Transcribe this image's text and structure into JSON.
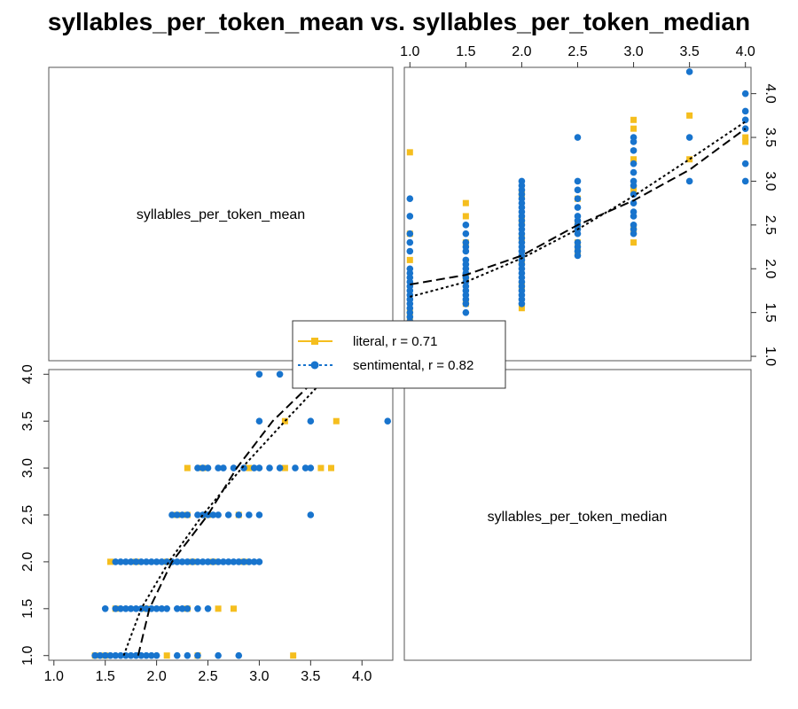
{
  "chart_data": {
    "type": "scatter",
    "title": "syllables_per_token_mean vs. syllables_per_token_median",
    "variables": [
      "syllables_per_token_mean",
      "syllables_per_token_median"
    ],
    "x_ticks": [
      "1.0",
      "1.5",
      "2.0",
      "2.5",
      "3.0",
      "3.5",
      "4.0"
    ],
    "y_ticks": [
      "1.0",
      "1.5",
      "2.0",
      "2.5",
      "3.0",
      "3.5",
      "4.0"
    ],
    "mean_range": [
      0.95,
      4.3
    ],
    "median_range": [
      0.95,
      4.05
    ],
    "grid": false,
    "legend_position": "center",
    "legend": [
      "literal, r = 0.71",
      "sentimental, r = 0.82"
    ],
    "series": [
      {
        "name": "literal, r = 0.71",
        "color": "#F5BE1E",
        "marker": "square",
        "line_style": "dashed",
        "smooth": [
          [
            1.0,
            1.82
          ],
          [
            1.5,
            1.93
          ],
          [
            2.0,
            2.15
          ],
          [
            2.5,
            2.5
          ],
          [
            3.0,
            2.78
          ],
          [
            3.5,
            3.13
          ],
          [
            4.0,
            3.6
          ]
        ],
        "points": [
          [
            1.0,
            3.33
          ],
          [
            1.0,
            2.4
          ],
          [
            1.0,
            2.1
          ],
          [
            1.0,
            1.5
          ],
          [
            1.0,
            1.4
          ],
          [
            1.5,
            2.75
          ],
          [
            1.5,
            2.6
          ],
          [
            1.5,
            2.3
          ],
          [
            1.5,
            1.9
          ],
          [
            1.5,
            1.6
          ],
          [
            2.0,
            2.85
          ],
          [
            2.0,
            2.55
          ],
          [
            2.0,
            2.35
          ],
          [
            2.0,
            2.1
          ],
          [
            2.0,
            1.8
          ],
          [
            2.0,
            1.55
          ],
          [
            2.5,
            2.8
          ],
          [
            2.5,
            2.5
          ],
          [
            2.5,
            2.3
          ],
          [
            2.5,
            2.2
          ],
          [
            3.0,
            3.7
          ],
          [
            3.0,
            3.6
          ],
          [
            3.0,
            3.25
          ],
          [
            3.0,
            2.9
          ],
          [
            3.0,
            2.45
          ],
          [
            3.0,
            2.3
          ],
          [
            3.5,
            3.75
          ],
          [
            3.5,
            3.25
          ],
          [
            4.0,
            3.5
          ],
          [
            4.0,
            3.45
          ]
        ]
      },
      {
        "name": "sentimental, r = 0.82",
        "color": "#1874CD",
        "marker": "circle",
        "line_style": "dotted",
        "smooth": [
          [
            1.0,
            1.68
          ],
          [
            1.5,
            1.85
          ],
          [
            2.0,
            2.12
          ],
          [
            2.5,
            2.45
          ],
          [
            3.0,
            2.83
          ],
          [
            3.5,
            3.25
          ],
          [
            4.0,
            3.68
          ]
        ],
        "points": [
          [
            1.0,
            2.8
          ],
          [
            1.0,
            2.6
          ],
          [
            1.0,
            2.4
          ],
          [
            1.0,
            2.3
          ],
          [
            1.0,
            2.2
          ],
          [
            1.0,
            2.0
          ],
          [
            1.0,
            1.95
          ],
          [
            1.0,
            1.9
          ],
          [
            1.0,
            1.85
          ],
          [
            1.0,
            1.8
          ],
          [
            1.0,
            1.75
          ],
          [
            1.0,
            1.7
          ],
          [
            1.0,
            1.65
          ],
          [
            1.0,
            1.6
          ],
          [
            1.0,
            1.55
          ],
          [
            1.0,
            1.5
          ],
          [
            1.0,
            1.45
          ],
          [
            1.0,
            1.4
          ],
          [
            1.5,
            2.5
          ],
          [
            1.5,
            2.4
          ],
          [
            1.5,
            2.3
          ],
          [
            1.5,
            2.25
          ],
          [
            1.5,
            2.2
          ],
          [
            1.5,
            2.1
          ],
          [
            1.5,
            2.05
          ],
          [
            1.5,
            2.0
          ],
          [
            1.5,
            1.95
          ],
          [
            1.5,
            1.9
          ],
          [
            1.5,
            1.85
          ],
          [
            1.5,
            1.8
          ],
          [
            1.5,
            1.75
          ],
          [
            1.5,
            1.7
          ],
          [
            1.5,
            1.65
          ],
          [
            1.5,
            1.6
          ],
          [
            1.5,
            1.5
          ],
          [
            2.0,
            3.0
          ],
          [
            2.0,
            2.95
          ],
          [
            2.0,
            2.9
          ],
          [
            2.0,
            2.85
          ],
          [
            2.0,
            2.8
          ],
          [
            2.0,
            2.75
          ],
          [
            2.0,
            2.7
          ],
          [
            2.0,
            2.65
          ],
          [
            2.0,
            2.6
          ],
          [
            2.0,
            2.55
          ],
          [
            2.0,
            2.5
          ],
          [
            2.0,
            2.45
          ],
          [
            2.0,
            2.4
          ],
          [
            2.0,
            2.35
          ],
          [
            2.0,
            2.3
          ],
          [
            2.0,
            2.25
          ],
          [
            2.0,
            2.2
          ],
          [
            2.0,
            2.15
          ],
          [
            2.0,
            2.1
          ],
          [
            2.0,
            2.05
          ],
          [
            2.0,
            2.0
          ],
          [
            2.0,
            1.95
          ],
          [
            2.0,
            1.9
          ],
          [
            2.0,
            1.85
          ],
          [
            2.0,
            1.8
          ],
          [
            2.0,
            1.75
          ],
          [
            2.0,
            1.7
          ],
          [
            2.0,
            1.65
          ],
          [
            2.0,
            1.6
          ],
          [
            2.5,
            3.5
          ],
          [
            2.5,
            3.0
          ],
          [
            2.5,
            2.9
          ],
          [
            2.5,
            2.8
          ],
          [
            2.5,
            2.7
          ],
          [
            2.5,
            2.6
          ],
          [
            2.5,
            2.55
          ],
          [
            2.5,
            2.5
          ],
          [
            2.5,
            2.45
          ],
          [
            2.5,
            2.4
          ],
          [
            2.5,
            2.3
          ],
          [
            2.5,
            2.25
          ],
          [
            2.5,
            2.2
          ],
          [
            2.5,
            2.15
          ],
          [
            3.0,
            3.5
          ],
          [
            3.0,
            3.45
          ],
          [
            3.0,
            3.35
          ],
          [
            3.0,
            3.2
          ],
          [
            3.0,
            3.1
          ],
          [
            3.0,
            3.0
          ],
          [
            3.0,
            2.95
          ],
          [
            3.0,
            2.85
          ],
          [
            3.0,
            2.75
          ],
          [
            3.0,
            2.65
          ],
          [
            3.0,
            2.6
          ],
          [
            3.0,
            2.5
          ],
          [
            3.0,
            2.45
          ],
          [
            3.0,
            2.4
          ],
          [
            3.5,
            4.25
          ],
          [
            3.5,
            3.5
          ],
          [
            3.5,
            3.0
          ],
          [
            4.0,
            4.0
          ],
          [
            4.0,
            3.8
          ],
          [
            4.0,
            3.7
          ],
          [
            4.0,
            3.6
          ],
          [
            4.0,
            3.2
          ],
          [
            4.0,
            3.0
          ]
        ]
      }
    ]
  }
}
